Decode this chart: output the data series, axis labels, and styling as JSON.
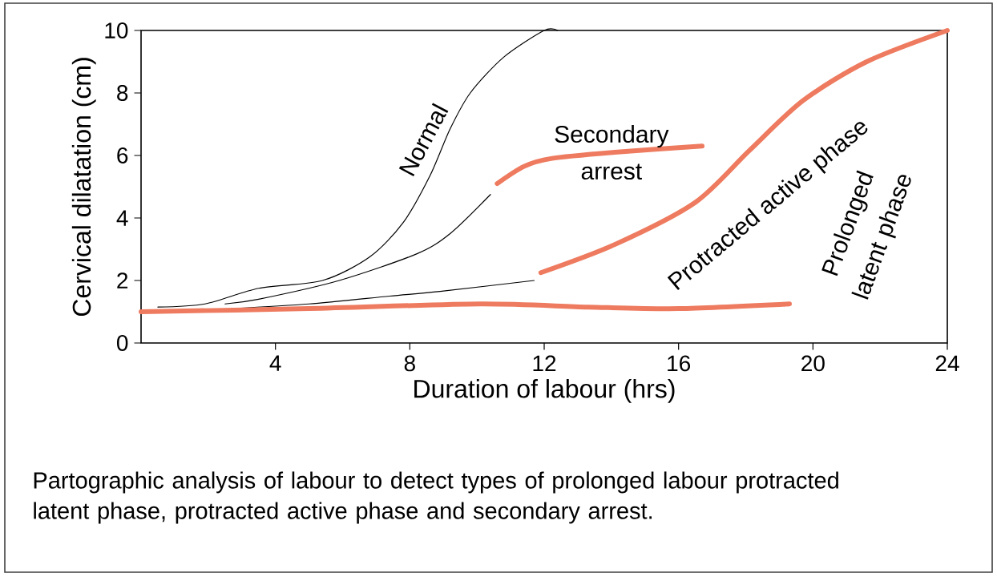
{
  "chart_data": {
    "type": "line",
    "xlabel": "Duration of labour (hrs)",
    "ylabel": "Cervical dilatation (cm)",
    "xlim": [
      0,
      24
    ],
    "ylim": [
      0,
      10
    ],
    "xticks": [
      4,
      8,
      12,
      16,
      20,
      24
    ],
    "yticks": [
      0,
      2,
      4,
      6,
      8,
      10
    ],
    "grid": false,
    "legend": false,
    "marker": "none",
    "line_style": "solid",
    "series": [
      {
        "name": "Normal",
        "color": "#000000",
        "x": [
          0.5,
          1.9,
          3.5,
          5.4,
          6.8,
          7.8,
          8.6,
          9.2,
          9.8,
          10.8,
          12,
          12.4
        ],
        "values": [
          1.15,
          1.25,
          1.75,
          2.0,
          2.75,
          3.85,
          5.35,
          6.85,
          8.0,
          9.15,
          10,
          10
        ]
      },
      {
        "color": "#000000",
        "x": [
          2.5,
          3.5,
          5.9,
          8.2,
          9.2,
          10.4
        ],
        "values": [
          1.25,
          1.4,
          2.0,
          2.85,
          3.5,
          4.75
        ]
      },
      {
        "color": "#000000",
        "x": [
          2.7,
          5.0,
          7.4,
          8.9,
          11.7
        ],
        "values": [
          1.1,
          1.25,
          1.5,
          1.65,
          2.0
        ]
      },
      {
        "name": "Secondary arrest",
        "color": "#ee7b5f",
        "x": [
          10.6,
          11.4,
          12.2,
          14.1,
          16.7
        ],
        "values": [
          5.1,
          5.65,
          5.9,
          6.1,
          6.3
        ]
      },
      {
        "name": "Protracted active phase",
        "color": "#ee7b5f",
        "x": [
          11.9,
          14.1,
          16.5,
          18.1,
          19.7,
          21.6,
          24
        ],
        "values": [
          2.25,
          3.15,
          4.5,
          6.15,
          7.75,
          9.0,
          10
        ]
      },
      {
        "name": "Prolonged latent phase",
        "color": "#ee7b5f",
        "x": [
          0,
          5.0,
          10.1,
          13.3,
          16,
          19.3
        ],
        "values": [
          1.0,
          1.1,
          1.25,
          1.15,
          1.1,
          1.25
        ]
      }
    ],
    "annotations": [
      "Partographic analysis of labour to detect types of prolonged labour protracted latent phase, protracted active phase and secondary arrest."
    ]
  }
}
